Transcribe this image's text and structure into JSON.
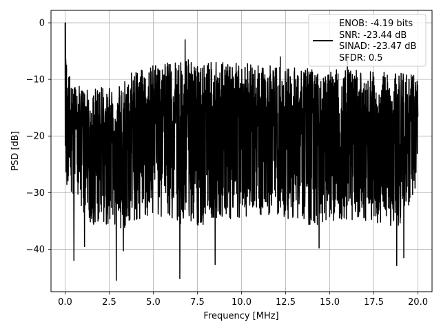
{
  "chart_data": {
    "type": "line",
    "title": "",
    "xlabel": "Frequency [MHz]",
    "ylabel": "PSD [dB]",
    "xlim": [
      -0.8,
      20.8
    ],
    "ylim": [
      -47.5,
      2.2
    ],
    "xticks": [
      0.0,
      2.5,
      5.0,
      7.5,
      10.0,
      12.5,
      15.0,
      17.5,
      20.0
    ],
    "xtick_labels": [
      "0.0",
      "2.5",
      "5.0",
      "7.5",
      "10.0",
      "12.5",
      "15.0",
      "17.5",
      "20.0"
    ],
    "yticks": [
      0,
      -10,
      -20,
      -30,
      -40
    ],
    "ytick_labels": [
      "0",
      "−10",
      "−20",
      "−30",
      "−40"
    ],
    "grid": true,
    "legend_position": "top-right",
    "series": [
      {
        "color": "#000000",
        "legend_lines": [
          "ENOB: -4.19 bits",
          "SNR: -23.44 dB",
          "SINAD: -23.47 dB",
          "SFDR: 0.5"
        ],
        "envelope": {
          "x": [
            0.0,
            0.1,
            0.5,
            1.0,
            2.0,
            3.0,
            4.0,
            5.0,
            6.0,
            7.0,
            8.0,
            9.0,
            10.0,
            11.0,
            12.0,
            13.0,
            14.0,
            15.0,
            16.0,
            17.0,
            18.0,
            19.0,
            20.0
          ],
          "upper": [
            0.0,
            -8.0,
            -10.0,
            -12.0,
            -11.5,
            -10.0,
            -8.5,
            -7.5,
            -7.0,
            -6.5,
            -7.0,
            -7.0,
            -7.0,
            -7.5,
            -7.5,
            -7.5,
            -8.0,
            -8.0,
            -8.0,
            -8.5,
            -8.5,
            -8.5,
            -9.5
          ],
          "lower": [
            -25.0,
            -30.0,
            -33.0,
            -35.0,
            -36.0,
            -37.0,
            -35.0,
            -34.0,
            -35.0,
            -36.0,
            -36.0,
            -35.0,
            -35.0,
            -34.0,
            -34.0,
            -35.0,
            -36.0,
            -35.0,
            -35.0,
            -35.0,
            -36.0,
            -36.0,
            -28.0
          ]
        },
        "peaks": [
          {
            "x": 0.02,
            "y": 0.0
          },
          {
            "x": 0.5,
            "y": -42.0
          },
          {
            "x": 1.1,
            "y": -39.5
          },
          {
            "x": 2.9,
            "y": -45.5
          },
          {
            "x": 3.3,
            "y": -40.3
          },
          {
            "x": 6.5,
            "y": -45.2
          },
          {
            "x": 8.5,
            "y": -42.7
          },
          {
            "x": 14.4,
            "y": -39.8
          },
          {
            "x": 18.8,
            "y": -42.9
          },
          {
            "x": 19.2,
            "y": -41.5
          },
          {
            "x": 6.8,
            "y": -3.0
          },
          {
            "x": 12.2,
            "y": -6.0
          },
          {
            "x": 16.0,
            "y": -6.5
          }
        ]
      }
    ]
  }
}
